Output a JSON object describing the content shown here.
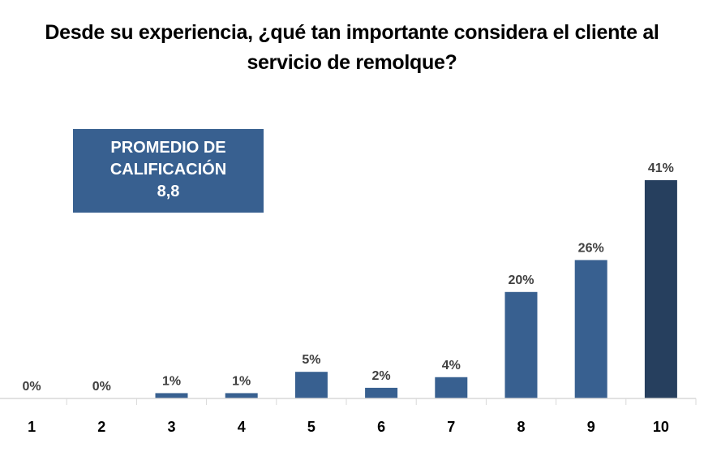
{
  "chart_data": {
    "type": "bar",
    "title": "Desde su experiencia, ¿qué tan importante considera el cliente al servicio de remolque?",
    "title_lines": [
      "Desde su experiencia, ¿qué tan importante considera el cliente al",
      "servicio de remolque?"
    ],
    "categories": [
      "1",
      "2",
      "3",
      "4",
      "5",
      "6",
      "7",
      "8",
      "9",
      "10"
    ],
    "values": [
      0,
      0,
      1,
      1,
      5,
      2,
      4,
      20,
      26,
      41
    ],
    "data_labels": [
      "0%",
      "0%",
      "1%",
      "1%",
      "5%",
      "2%",
      "4%",
      "20%",
      "26%",
      "41%"
    ],
    "xlabel": "",
    "ylabel": "",
    "ylim": [
      0,
      45
    ],
    "grid": false,
    "legend": "none",
    "colors": {
      "default": "#386090",
      "highlight": "#263f5e",
      "axis": "#d9d9d9"
    },
    "highlight_category": "10",
    "annotation": {
      "lines": [
        "PROMEDIO DE",
        "CALIFICACIÓN",
        "8,8"
      ]
    }
  }
}
